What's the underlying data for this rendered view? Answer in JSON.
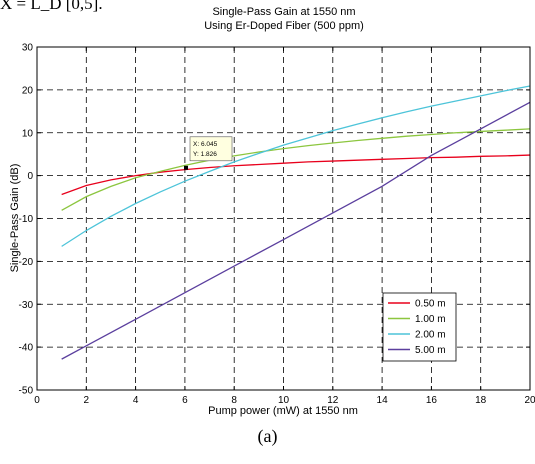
{
  "page": {
    "top_fragment": "X = L_D [0,5].",
    "caption": "(a)"
  },
  "chart_data": {
    "type": "line",
    "title": "Single-Pass Gain at 1550 nm",
    "subtitle": "Using Er-Doped Fiber (500 ppm)",
    "xlabel": "Pump power (mW) at 1550 nm",
    "ylabel": "Single-Pass Gain (dB)",
    "xlim": [
      0,
      20
    ],
    "ylim": [
      -50,
      30
    ],
    "xticks": [
      "0",
      "2",
      "4",
      "6",
      "8",
      "10",
      "12",
      "14",
      "16",
      "18",
      "20"
    ],
    "yticks": [
      "-50",
      "-40",
      "-30",
      "-20",
      "-10",
      "0",
      "10",
      "20",
      "30"
    ],
    "grid": true,
    "legend_position": "lower-right",
    "series": [
      {
        "name": "0.50 m",
        "color": "#e8001c",
        "x": [
          1,
          2,
          3,
          4,
          5,
          6,
          7,
          8,
          9,
          10,
          11,
          12,
          13,
          14,
          15,
          16,
          17,
          18,
          19,
          20
        ],
        "y": [
          -4.4,
          -2.3,
          -1.0,
          0.0,
          0.8,
          1.4,
          1.9,
          2.3,
          2.6,
          2.9,
          3.2,
          3.4,
          3.6,
          3.8,
          4.0,
          4.2,
          4.3,
          4.5,
          4.6,
          4.8
        ]
      },
      {
        "name": "1.00 m",
        "color": "#8cc63f",
        "x": [
          1,
          2,
          3,
          4,
          5,
          6,
          7,
          8,
          9,
          10,
          11,
          12,
          13,
          14,
          15,
          16,
          17,
          18,
          19,
          20
        ],
        "y": [
          -8.1,
          -4.9,
          -2.5,
          -0.5,
          1.0,
          2.4,
          3.6,
          4.6,
          5.5,
          6.3,
          7.0,
          7.6,
          8.2,
          8.7,
          9.2,
          9.6,
          10.0,
          10.3,
          10.6,
          10.9
        ]
      },
      {
        "name": "2.00 m",
        "color": "#4dc4d9",
        "x": [
          1,
          2,
          3,
          4,
          5,
          6,
          7,
          8,
          9,
          10,
          11,
          12,
          13,
          14,
          15,
          16,
          17,
          18,
          19,
          20
        ],
        "y": [
          -16.5,
          -12.8,
          -9.5,
          -6.5,
          -3.8,
          -1.3,
          1.0,
          3.2,
          5.2,
          7.1,
          8.8,
          10.5,
          12.0,
          13.5,
          14.9,
          16.2,
          17.4,
          18.6,
          19.8,
          20.9
        ]
      },
      {
        "name": "5.00 m",
        "color": "#5b3f9e",
        "x": [
          1,
          2,
          4,
          6,
          8,
          10,
          12,
          14,
          16,
          18,
          20
        ],
        "y": [
          -42.8,
          -39.7,
          -33.5,
          -27.3,
          -21.1,
          -14.9,
          -8.7,
          -2.5,
          4.7,
          10.9,
          17.1
        ]
      }
    ],
    "annotation": {
      "x": 6.045,
      "y": 1.826,
      "lines": [
        "X: 6.045",
        "Y: 1.826"
      ]
    }
  }
}
